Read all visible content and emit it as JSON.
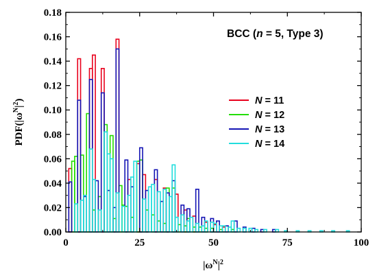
{
  "chart_data": {
    "type": "histogram",
    "annotation": {
      "prefix": "BCC (",
      "n_symbol": "n",
      "mid": " = 5, Type 3)"
    },
    "xlabel": {
      "base": "|ω",
      "sup": "N",
      "tail": "|",
      "pow": "2"
    },
    "ylabel": {
      "head": "PDF(|ω",
      "sup": "N",
      "tail": "|",
      "pow": "2",
      "close": ")"
    },
    "xlim": [
      0,
      100
    ],
    "ylim": [
      0,
      0.18
    ],
    "xticks": [
      "0",
      "25",
      "50",
      "75",
      "100"
    ],
    "yticks": [
      "0.00",
      "0.02",
      "0.04",
      "0.06",
      "0.08",
      "0.10",
      "0.12",
      "0.14",
      "0.16",
      "0.18"
    ],
    "grid": false,
    "legend_position": "center-right",
    "series": [
      {
        "name": "N = 11",
        "name_var": "N",
        "name_rest": " = 11",
        "color": "#e8001c",
        "bins": [
          [
            1,
            2,
            0.052
          ],
          [
            4,
            5,
            0.142
          ],
          [
            8,
            9,
            0.134
          ],
          [
            9,
            10,
            0.145
          ],
          [
            12,
            13,
            0.134
          ],
          [
            17,
            18,
            0.158
          ],
          [
            21,
            22,
            0.043
          ],
          [
            24,
            25,
            0.056
          ],
          [
            26,
            27,
            0.047
          ],
          [
            30,
            31,
            0.043
          ],
          [
            33,
            34,
            0.036
          ],
          [
            37,
            38,
            0.031
          ],
          [
            40,
            41,
            0.018
          ],
          [
            43,
            44,
            0.013
          ],
          [
            47,
            48,
            0.008
          ],
          [
            50,
            51,
            0.006
          ],
          [
            53,
            54,
            0.004
          ]
        ]
      },
      {
        "name": "N = 12",
        "name_var": "N",
        "name_rest": " = 12",
        "color": "#22dd00",
        "bins": [
          [
            2,
            3,
            0.058
          ],
          [
            3,
            4,
            0.062
          ],
          [
            5,
            6,
            0.063
          ],
          [
            7,
            8,
            0.097
          ],
          [
            9,
            10,
            0.018
          ],
          [
            11,
            12,
            0.029
          ],
          [
            13,
            14,
            0.088
          ],
          [
            15,
            16,
            0.079
          ],
          [
            16,
            17,
            0.011
          ],
          [
            18,
            19,
            0.038
          ],
          [
            19,
            20,
            0.022
          ],
          [
            20,
            21,
            0.021
          ],
          [
            22,
            23,
            0.012
          ],
          [
            24,
            25,
            0.058
          ],
          [
            25,
            26,
            0.059
          ],
          [
            27,
            28,
            0.018
          ],
          [
            29,
            30,
            0.014
          ],
          [
            31,
            32,
            0.009
          ],
          [
            33,
            34,
            0.007
          ],
          [
            34,
            35,
            0.036
          ],
          [
            36,
            37,
            0.036
          ],
          [
            38,
            39,
            0.006
          ],
          [
            40,
            41,
            0.005
          ],
          [
            41,
            42,
            0.011
          ],
          [
            43,
            44,
            0.004
          ],
          [
            45,
            46,
            0.004
          ],
          [
            47,
            48,
            0.003
          ],
          [
            49,
            50,
            0.003
          ],
          [
            52,
            53,
            0.002
          ],
          [
            56,
            57,
            0.002
          ]
        ]
      },
      {
        "name": "N = 13",
        "name_var": "N",
        "name_rest": " = 13",
        "color": "#1414b4",
        "bins": [
          [
            1,
            2,
            0.041
          ],
          [
            4,
            5,
            0.108
          ],
          [
            6,
            7,
            0.029
          ],
          [
            8,
            9,
            0.125
          ],
          [
            10,
            11,
            0.042
          ],
          [
            12,
            13,
            0.114
          ],
          [
            14,
            15,
            0.034
          ],
          [
            16,
            17,
            0.02
          ],
          [
            17,
            18,
            0.15
          ],
          [
            20,
            21,
            0.059
          ],
          [
            22,
            23,
            0.037
          ],
          [
            25,
            26,
            0.069
          ],
          [
            27,
            28,
            0.034
          ],
          [
            30,
            31,
            0.051
          ],
          [
            32,
            33,
            0.025
          ],
          [
            34,
            35,
            0.032
          ],
          [
            36,
            37,
            0.042
          ],
          [
            39,
            40,
            0.022
          ],
          [
            41,
            42,
            0.019
          ],
          [
            44,
            45,
            0.035
          ],
          [
            46,
            47,
            0.012
          ],
          [
            49,
            50,
            0.011
          ],
          [
            51,
            52,
            0.009
          ],
          [
            54,
            55,
            0.005
          ],
          [
            57,
            58,
            0.009
          ],
          [
            60,
            61,
            0.004
          ],
          [
            63,
            64,
            0.003
          ],
          [
            66,
            67,
            0.002
          ],
          [
            70,
            71,
            0.002
          ]
        ]
      },
      {
        "name": "N = 14",
        "name_var": "N",
        "name_rest": " = 14",
        "color": "#22dddd",
        "bins": [
          [
            3,
            4,
            0.023
          ],
          [
            5,
            6,
            0.026
          ],
          [
            6,
            7,
            0.03
          ],
          [
            8,
            9,
            0.068
          ],
          [
            9,
            10,
            0.043
          ],
          [
            11,
            12,
            0.018
          ],
          [
            13,
            14,
            0.082
          ],
          [
            14,
            15,
            0.064
          ],
          [
            15,
            16,
            0.06
          ],
          [
            17,
            18,
            0.032
          ],
          [
            19,
            20,
            0.021
          ],
          [
            21,
            22,
            0.03
          ],
          [
            22,
            23,
            0.045
          ],
          [
            23,
            24,
            0.058
          ],
          [
            26,
            27,
            0.027
          ],
          [
            28,
            29,
            0.037
          ],
          [
            29,
            30,
            0.039
          ],
          [
            31,
            32,
            0.033
          ],
          [
            33,
            34,
            0.035
          ],
          [
            35,
            36,
            0.029
          ],
          [
            36,
            37,
            0.055
          ],
          [
            37,
            38,
            0.012
          ],
          [
            39,
            40,
            0.014
          ],
          [
            41,
            42,
            0.009
          ],
          [
            42,
            43,
            0.012
          ],
          [
            44,
            45,
            0.007
          ],
          [
            46,
            47,
            0.005
          ],
          [
            47,
            48,
            0.009
          ],
          [
            49,
            50,
            0.008
          ],
          [
            50,
            51,
            0.007
          ],
          [
            52,
            53,
            0.005
          ],
          [
            53,
            54,
            0.005
          ],
          [
            55,
            56,
            0.004
          ],
          [
            56,
            57,
            0.009
          ],
          [
            58,
            59,
            0.003
          ],
          [
            60,
            61,
            0.003
          ],
          [
            62,
            63,
            0.003
          ],
          [
            64,
            65,
            0.002
          ],
          [
            67,
            68,
            0.002
          ],
          [
            71,
            72,
            0.002
          ],
          [
            74,
            75,
            0.001
          ],
          [
            78,
            79,
            0.001
          ],
          [
            82,
            83,
            0.001
          ],
          [
            86,
            87,
            0.001
          ],
          [
            90,
            91,
            0.001
          ],
          [
            95,
            96,
            0.001
          ]
        ]
      }
    ]
  }
}
